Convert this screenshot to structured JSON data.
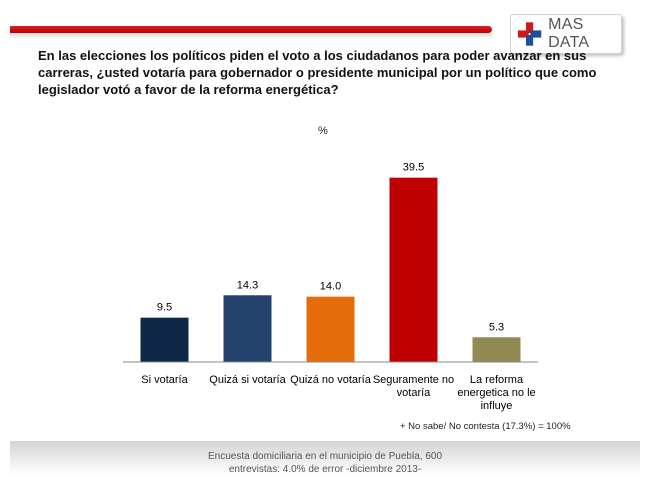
{
  "header": {
    "logo_text": "MAS DATA",
    "icon": "red-blue-cross-logo-icon"
  },
  "question": "En las elecciones los políticos piden el voto a los ciudadanos para poder avanzar en sus carreras, ¿usted votaría para gobernador o presidente municipal por un político que como legislador votó a favor de la reforma energética?",
  "unit_label": "%",
  "note": "+ No sabe/ No contesta (17.3%) = 100%",
  "footer": {
    "line1": "Encuesta domiciliaria en el municipio de Puebla, 600",
    "line2": "entrevistas: 4.0% de error -diciembre 2013-"
  },
  "chart_data": {
    "type": "bar",
    "categories": [
      "Si votaría",
      "Quizá si votaría",
      "Quizá no votaría",
      "Seguramente no votaría",
      "La reforma energetica no le influye"
    ],
    "category_lines": [
      [
        "Si votaría"
      ],
      [
        "Quizá si votaría"
      ],
      [
        "Quizá no votaría"
      ],
      [
        "Seguramente no",
        "votaría"
      ],
      [
        "La reforma",
        "energetica no le",
        "influye"
      ]
    ],
    "values": [
      9.5,
      14.3,
      14.0,
      39.5,
      5.3
    ],
    "value_labels": [
      "9.5",
      "14.3",
      "14.0",
      "39.5",
      "5.3"
    ],
    "colors": [
      "#0f2847",
      "#23426e",
      "#e46c0a",
      "#c00000",
      "#938953"
    ],
    "title": "",
    "xlabel": "",
    "ylabel": "%",
    "ylim": [
      0,
      42
    ],
    "grid": false,
    "legend": "none"
  }
}
